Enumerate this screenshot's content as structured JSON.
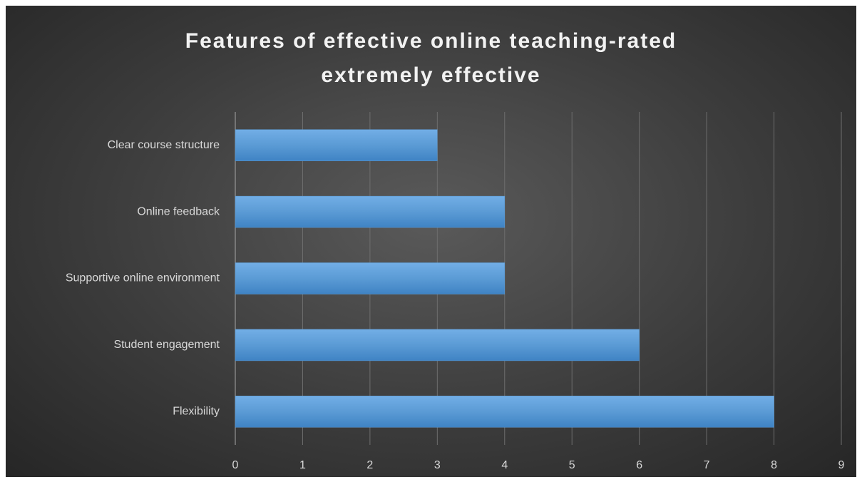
{
  "chart_data": {
    "type": "barh",
    "title": "Features of effective online teaching-rated extremely effective",
    "categories": [
      "Clear course structure",
      "Online feedback",
      "Supportive online environment",
      "Student engagement",
      "Flexibility"
    ],
    "values": [
      3,
      4,
      4,
      6,
      8
    ],
    "color": "#5b9bd5",
    "xlim": [
      0,
      9
    ],
    "xticks": [
      0,
      1,
      2,
      3,
      4,
      5,
      6,
      7,
      8,
      9
    ],
    "grid": true
  }
}
